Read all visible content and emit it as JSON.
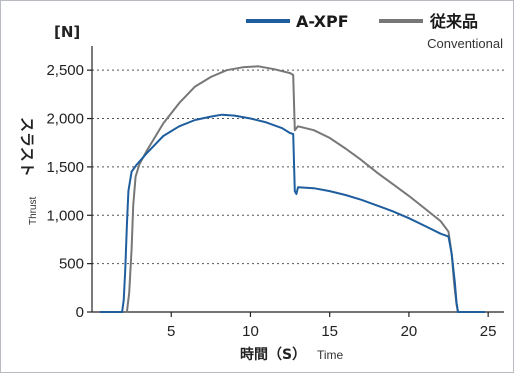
{
  "chart_data": {
    "type": "line",
    "unit_label": "[N]",
    "ylabel_jp": "スラスト",
    "ylabel_en": "Thrust",
    "xlabel_jp": "時間（S）",
    "xlabel_en": "Time",
    "xlim": [
      0,
      26
    ],
    "ylim": [
      0,
      2750
    ],
    "x_ticks": [
      5,
      10,
      15,
      20,
      25
    ],
    "y_ticks": [
      0,
      500,
      1000,
      1500,
      2000,
      2500
    ],
    "y_tick_labels": [
      "0",
      "500",
      "1,000",
      "1,500",
      "2,000",
      "2,500"
    ],
    "grid": "horizontal-dotted",
    "legend_position": "top-right",
    "series": [
      {
        "name": "A-XPF",
        "color": "#1f5e9e",
        "points": [
          [
            0.5,
            0
          ],
          [
            1.9,
            0
          ],
          [
            2.0,
            120
          ],
          [
            2.1,
            450
          ],
          [
            2.2,
            900
          ],
          [
            2.3,
            1250
          ],
          [
            2.5,
            1450
          ],
          [
            2.8,
            1520
          ],
          [
            3.5,
            1650
          ],
          [
            4.5,
            1820
          ],
          [
            5.5,
            1920
          ],
          [
            6.5,
            1985
          ],
          [
            7.5,
            2020
          ],
          [
            8.2,
            2040
          ],
          [
            9.0,
            2030
          ],
          [
            10.0,
            2000
          ],
          [
            11.0,
            1960
          ],
          [
            12.0,
            1900
          ],
          [
            12.5,
            1850
          ],
          [
            12.7,
            1840
          ],
          [
            12.8,
            1250
          ],
          [
            12.9,
            1220
          ],
          [
            13.0,
            1290
          ],
          [
            14.0,
            1280
          ],
          [
            15.0,
            1250
          ],
          [
            16.0,
            1210
          ],
          [
            17.0,
            1160
          ],
          [
            18.0,
            1100
          ],
          [
            19.0,
            1040
          ],
          [
            20.0,
            970
          ],
          [
            21.0,
            890
          ],
          [
            22.0,
            810
          ],
          [
            22.5,
            780
          ],
          [
            22.7,
            600
          ],
          [
            22.9,
            300
          ],
          [
            23.0,
            100
          ],
          [
            23.1,
            0
          ],
          [
            24.8,
            0
          ]
        ]
      },
      {
        "name": "従来品",
        "subtitle": "Conventional",
        "color": "#777777",
        "points": [
          [
            0.5,
            0
          ],
          [
            2.2,
            0
          ],
          [
            2.35,
            200
          ],
          [
            2.5,
            650
          ],
          [
            2.6,
            1100
          ],
          [
            2.75,
            1400
          ],
          [
            3.0,
            1530
          ],
          [
            3.5,
            1680
          ],
          [
            4.5,
            1950
          ],
          [
            5.5,
            2160
          ],
          [
            6.5,
            2330
          ],
          [
            7.5,
            2430
          ],
          [
            8.5,
            2500
          ],
          [
            9.5,
            2530
          ],
          [
            10.5,
            2540
          ],
          [
            11.5,
            2510
          ],
          [
            12.5,
            2470
          ],
          [
            12.7,
            2450
          ],
          [
            12.8,
            1880
          ],
          [
            13.0,
            1920
          ],
          [
            14.0,
            1880
          ],
          [
            15.0,
            1800
          ],
          [
            16.0,
            1690
          ],
          [
            17.0,
            1570
          ],
          [
            18.0,
            1440
          ],
          [
            19.0,
            1320
          ],
          [
            20.0,
            1200
          ],
          [
            21.0,
            1070
          ],
          [
            22.0,
            940
          ],
          [
            22.5,
            830
          ],
          [
            22.7,
            600
          ],
          [
            22.85,
            300
          ],
          [
            23.0,
            80
          ],
          [
            23.1,
            0
          ],
          [
            24.8,
            0
          ]
        ]
      }
    ]
  }
}
